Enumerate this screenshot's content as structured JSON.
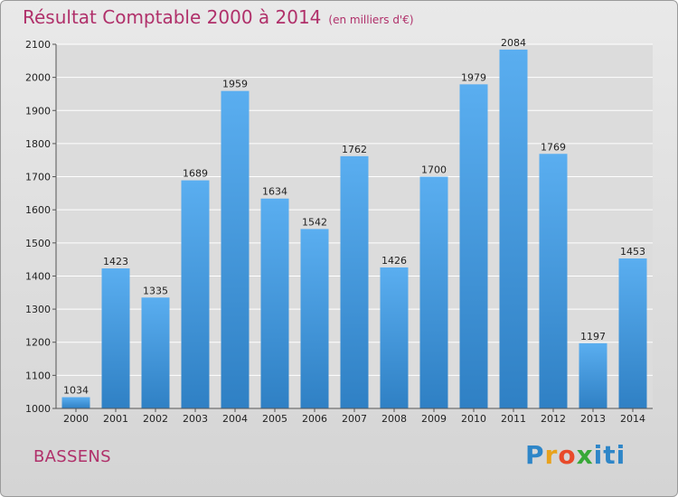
{
  "chart_data": {
    "type": "bar",
    "title": "Résultat Comptable 2000 à 2014",
    "units": "(en milliers d'€)",
    "categories": [
      "2000",
      "2001",
      "2002",
      "2003",
      "2004",
      "2005",
      "2006",
      "2007",
      "2008",
      "2009",
      "2010",
      "2011",
      "2012",
      "2013",
      "2014"
    ],
    "values": [
      1034,
      1423,
      1335,
      1689,
      1959,
      1634,
      1542,
      1762,
      1426,
      1700,
      1979,
      2084,
      1769,
      1197,
      1453
    ],
    "ylim": [
      1000,
      2100
    ],
    "yticks": [
      "1000",
      "1100",
      "1200",
      "1300",
      "1400",
      "1500",
      "1600",
      "1700",
      "1800",
      "1900",
      "2000",
      "2100"
    ],
    "xlabel": "",
    "ylabel": "",
    "grid": true,
    "bar_color": "#2f86c8",
    "bar_color_light": "#5aaef0"
  },
  "place": "BASSENS",
  "logo": {
    "text": "Proxiti",
    "p1": "P",
    "p2": "r",
    "p3": "o",
    "p4": "x",
    "p5": "iti"
  },
  "colors": {
    "title": "#b0306a",
    "background": "#e0e0e0"
  }
}
